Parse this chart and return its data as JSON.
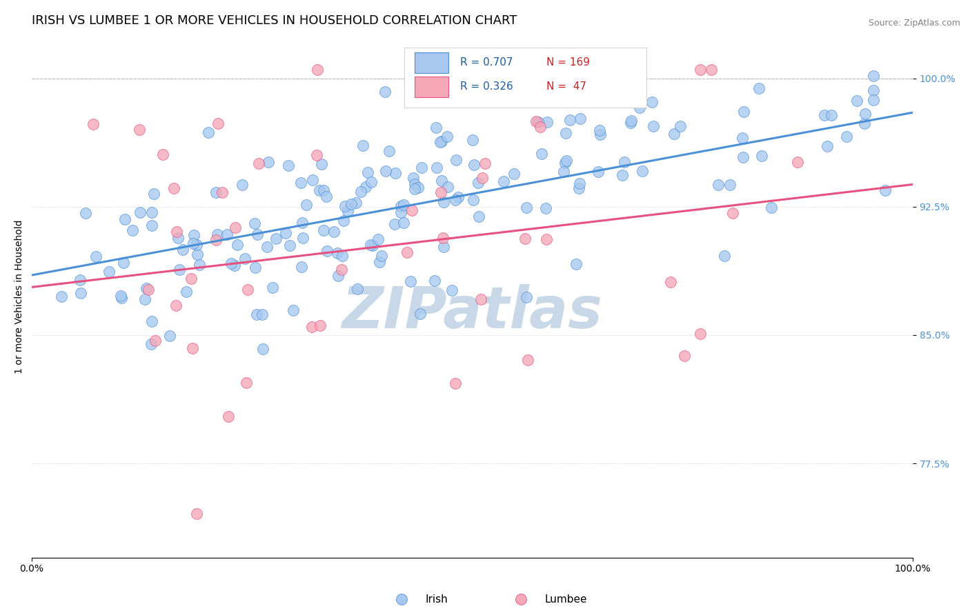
{
  "title": "IRISH VS LUMBEE 1 OR MORE VEHICLES IN HOUSEHOLD CORRELATION CHART",
  "source_text": "Source: ZipAtlas.com",
  "ylabel": "1 or more Vehicles in Household",
  "xlim": [
    0.0,
    1.0
  ],
  "ylim": [
    0.72,
    1.025
  ],
  "yticks": [
    0.775,
    0.85,
    0.925,
    1.0
  ],
  "ytick_labels": [
    "77.5%",
    "85.0%",
    "92.5%",
    "100.0%"
  ],
  "xticks": [
    0.0,
    1.0
  ],
  "xtick_labels": [
    "0.0%",
    "100.0%"
  ],
  "irish_R": 0.707,
  "irish_N": 169,
  "lumbee_R": 0.326,
  "lumbee_N": 47,
  "irish_color": "#a8c8f0",
  "lumbee_color": "#f4a8b8",
  "irish_line_color": "#4a90d9",
  "lumbee_line_color": "#e85080",
  "legend_irish_label": "Irish",
  "legend_lumbee_label": "Lumbee",
  "background_color": "#ffffff",
  "watermark_text": "ZIPatlas",
  "watermark_color": "#c8d8e8",
  "title_fontsize": 13,
  "axis_label_fontsize": 10,
  "tick_fontsize": 10,
  "legend_R_color": "#1a5fa8",
  "legend_N_color": "#cc2222",
  "dotted_line_y": 1.0,
  "irish_line_intercept": 0.885,
  "irish_line_slope": 0.095,
  "lumbee_line_intercept": 0.878,
  "lumbee_line_slope": 0.06
}
